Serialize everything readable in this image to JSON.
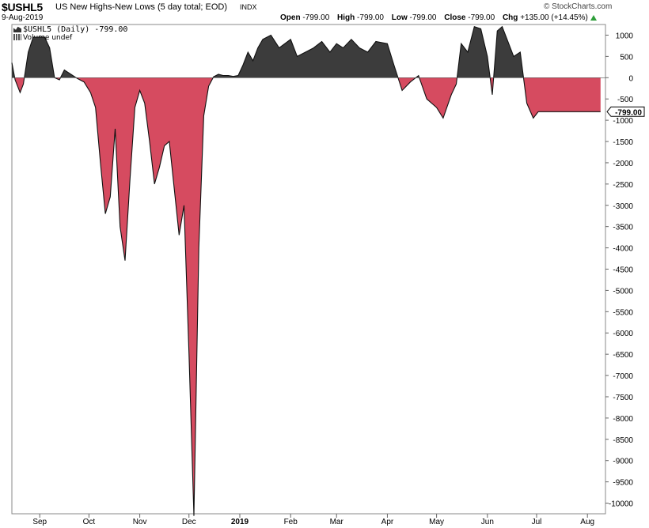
{
  "header": {
    "symbol": "$USHL5",
    "description": "US New Highs-New Lows (5 day total; EOD)",
    "exchange": "INDX",
    "date": "9-Aug-2019",
    "open_label": "Open",
    "open_value": "-799.00",
    "high_label": "High",
    "high_value": "-799.00",
    "low_label": "Low",
    "low_value": "-799.00",
    "close_label": "Close",
    "close_value": "-799.00",
    "chg_label": "Chg",
    "chg_value": "+135.00 (+14.45%)",
    "watermark": "© StockCharts.com"
  },
  "legend": {
    "series_label": "$USHL5 (Daily) -799.00",
    "volume_label": "Volume undef"
  },
  "colors": {
    "positive": "#3c3c3c",
    "negative": "#d64b60",
    "up_arrow": "#2e9e3a"
  },
  "chart_data": {
    "type": "area",
    "title": "",
    "ylim": [
      -10250,
      1250
    ],
    "yticks": [
      1000,
      500,
      0,
      -500,
      -1000,
      -1500,
      -2000,
      -2500,
      -3000,
      -3500,
      -4000,
      -4500,
      -5000,
      -5500,
      -6000,
      -6500,
      -7000,
      -7500,
      -8000,
      -8500,
      -9000,
      -9500,
      -10000
    ],
    "ytick_labels": [
      "1000",
      "500",
      "0",
      "-500",
      "-1000",
      "-1500",
      "-2000",
      "-2500",
      "-3000",
      "-3500",
      "-4000",
      "-4500",
      "-5000",
      "-5500",
      "-6000",
      "-6500",
      "-7000",
      "-7500",
      "-8000",
      "-8500",
      "-9000",
      "-9500",
      "-10000"
    ],
    "last_value": -799,
    "last_value_label": "-799.00",
    "xlim": [
      "2018-08-15",
      "2019-08-12"
    ],
    "xticks": [
      {
        "date": "2018-09-01",
        "label": "Sep",
        "bold": false
      },
      {
        "date": "2018-10-01",
        "label": "Oct",
        "bold": false
      },
      {
        "date": "2018-11-01",
        "label": "Nov",
        "bold": false
      },
      {
        "date": "2018-12-01",
        "label": "Dec",
        "bold": false
      },
      {
        "date": "2019-01-01",
        "label": "2019",
        "bold": true
      },
      {
        "date": "2019-02-01",
        "label": "Feb",
        "bold": false
      },
      {
        "date": "2019-03-01",
        "label": "Mar",
        "bold": false
      },
      {
        "date": "2019-04-01",
        "label": "Apr",
        "bold": false
      },
      {
        "date": "2019-05-01",
        "label": "May",
        "bold": false
      },
      {
        "date": "2019-06-01",
        "label": "Jun",
        "bold": false
      },
      {
        "date": "2019-07-01",
        "label": "Jul",
        "bold": false
      },
      {
        "date": "2019-08-01",
        "label": "Aug",
        "bold": false
      }
    ],
    "series": [
      {
        "x": [
          "2018-08-15",
          "2018-08-17",
          "2018-08-20",
          "2018-08-22",
          "2018-08-25",
          "2018-08-28",
          "2018-09-01",
          "2018-09-04",
          "2018-09-07",
          "2018-09-10",
          "2018-09-13",
          "2018-09-16",
          "2018-09-20",
          "2018-09-24",
          "2018-09-28",
          "2018-10-02",
          "2018-10-05",
          "2018-10-08",
          "2018-10-11",
          "2018-10-14",
          "2018-10-17",
          "2018-10-20",
          "2018-10-23",
          "2018-10-26",
          "2018-10-29",
          "2018-11-01",
          "2018-11-04",
          "2018-11-07",
          "2018-11-10",
          "2018-11-13",
          "2018-11-16",
          "2018-11-19",
          "2018-11-22",
          "2018-11-25",
          "2018-11-28",
          "2018-12-01",
          "2018-12-04",
          "2018-12-07",
          "2018-12-10",
          "2018-12-13",
          "2018-12-16",
          "2018-12-19",
          "2018-12-22",
          "2018-12-25",
          "2018-12-28",
          "2018-12-31",
          "2019-01-03",
          "2019-01-06",
          "2019-01-09",
          "2019-01-12",
          "2019-01-15",
          "2019-01-20",
          "2019-01-25",
          "2019-02-01",
          "2019-02-05",
          "2019-02-10",
          "2019-02-15",
          "2019-02-20",
          "2019-02-25",
          "2019-03-01",
          "2019-03-05",
          "2019-03-10",
          "2019-03-15",
          "2019-03-20",
          "2019-03-25",
          "2019-04-01",
          "2019-04-05",
          "2019-04-10",
          "2019-04-15",
          "2019-04-20",
          "2019-04-25",
          "2019-05-01",
          "2019-05-05",
          "2019-05-10",
          "2019-05-13",
          "2019-05-16",
          "2019-05-20",
          "2019-05-24",
          "2019-05-28",
          "2019-06-01",
          "2019-06-04",
          "2019-06-07",
          "2019-06-10",
          "2019-06-13",
          "2019-06-17",
          "2019-06-21",
          "2019-06-25",
          "2019-06-29",
          "2019-07-02",
          "2019-07-06",
          "2019-07-10",
          "2019-07-14",
          "2019-07-18",
          "2019-07-22",
          "2019-07-26",
          "2019-07-30",
          "2019-08-02",
          "2019-08-05",
          "2019-08-07",
          "2019-08-09"
        ],
        "y": [
          350,
          -50,
          -350,
          -150,
          600,
          950,
          950,
          950,
          700,
          0,
          -50,
          180,
          80,
          -20,
          -100,
          -350,
          -700,
          -2000,
          -3200,
          -2800,
          -1200,
          -3500,
          -4300,
          -2400,
          -700,
          -300,
          -600,
          -1500,
          -2500,
          -2100,
          -1600,
          -1500,
          -2600,
          -3700,
          -3000,
          -6500,
          -10300,
          -4000,
          -900,
          -200,
          20,
          80,
          50,
          50,
          30,
          50,
          300,
          600,
          400,
          700,
          900,
          1000,
          700,
          900,
          500,
          600,
          700,
          850,
          600,
          800,
          700,
          900,
          700,
          600,
          850,
          800,
          300,
          -300,
          -100,
          50,
          -500,
          -700,
          -950,
          -400,
          -150,
          800,
          600,
          1200,
          1150,
          500,
          -400,
          1100,
          1200,
          900,
          500,
          600,
          -600,
          -950,
          -799,
          -799,
          -799,
          -799,
          -799,
          -799,
          -799,
          -799,
          -799,
          -799,
          -799,
          -799
        ],
        "name": ""
      }
    ]
  }
}
